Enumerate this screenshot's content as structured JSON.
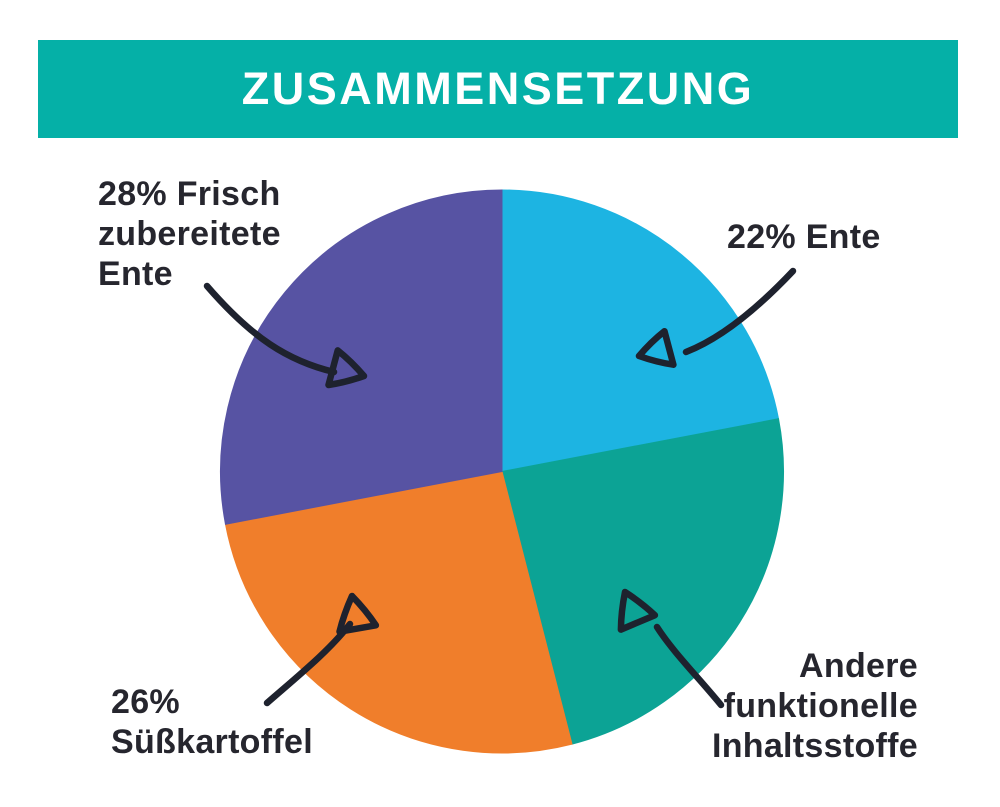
{
  "title": "ZUSAMMENSETZUNG",
  "theme": {
    "background": "#ffffff",
    "banner_bg": "#05b0a7",
    "banner_text": "#ffffff",
    "label_text": "#26262e",
    "arrow_color": "#1e222e"
  },
  "labels": {
    "duck_fresh": "28% Frisch\nzubereitete\nEnte",
    "duck": "22% Ente",
    "sweet_potato": "26%\nSüßkartoffel",
    "other": "Andere\nfunktionelle\nInhaltsstoffe"
  },
  "chart_data": {
    "type": "pie",
    "title": "ZUSAMMENSETZUNG",
    "start_angle_deg": 0,
    "direction": "clockwise",
    "legend_position": "none",
    "slices": [
      {
        "key": "ente",
        "label": "22% Ente",
        "value": 22,
        "value_shown": true,
        "color": "#1db4e2"
      },
      {
        "key": "andere-inhaltsstoffe",
        "label": "Andere funktionelle Inhaltsstoffe",
        "value": 24,
        "value_shown": false,
        "color": "#0ca395"
      },
      {
        "key": "suesskartoffel",
        "label": "26% Süßkartoffel",
        "value": 26,
        "value_shown": true,
        "color": "#f07e2b"
      },
      {
        "key": "frisch-zubereitete-ente",
        "label": "28% Frisch zubereitete Ente",
        "value": 28,
        "value_shown": true,
        "color": "#5753a3"
      }
    ]
  }
}
